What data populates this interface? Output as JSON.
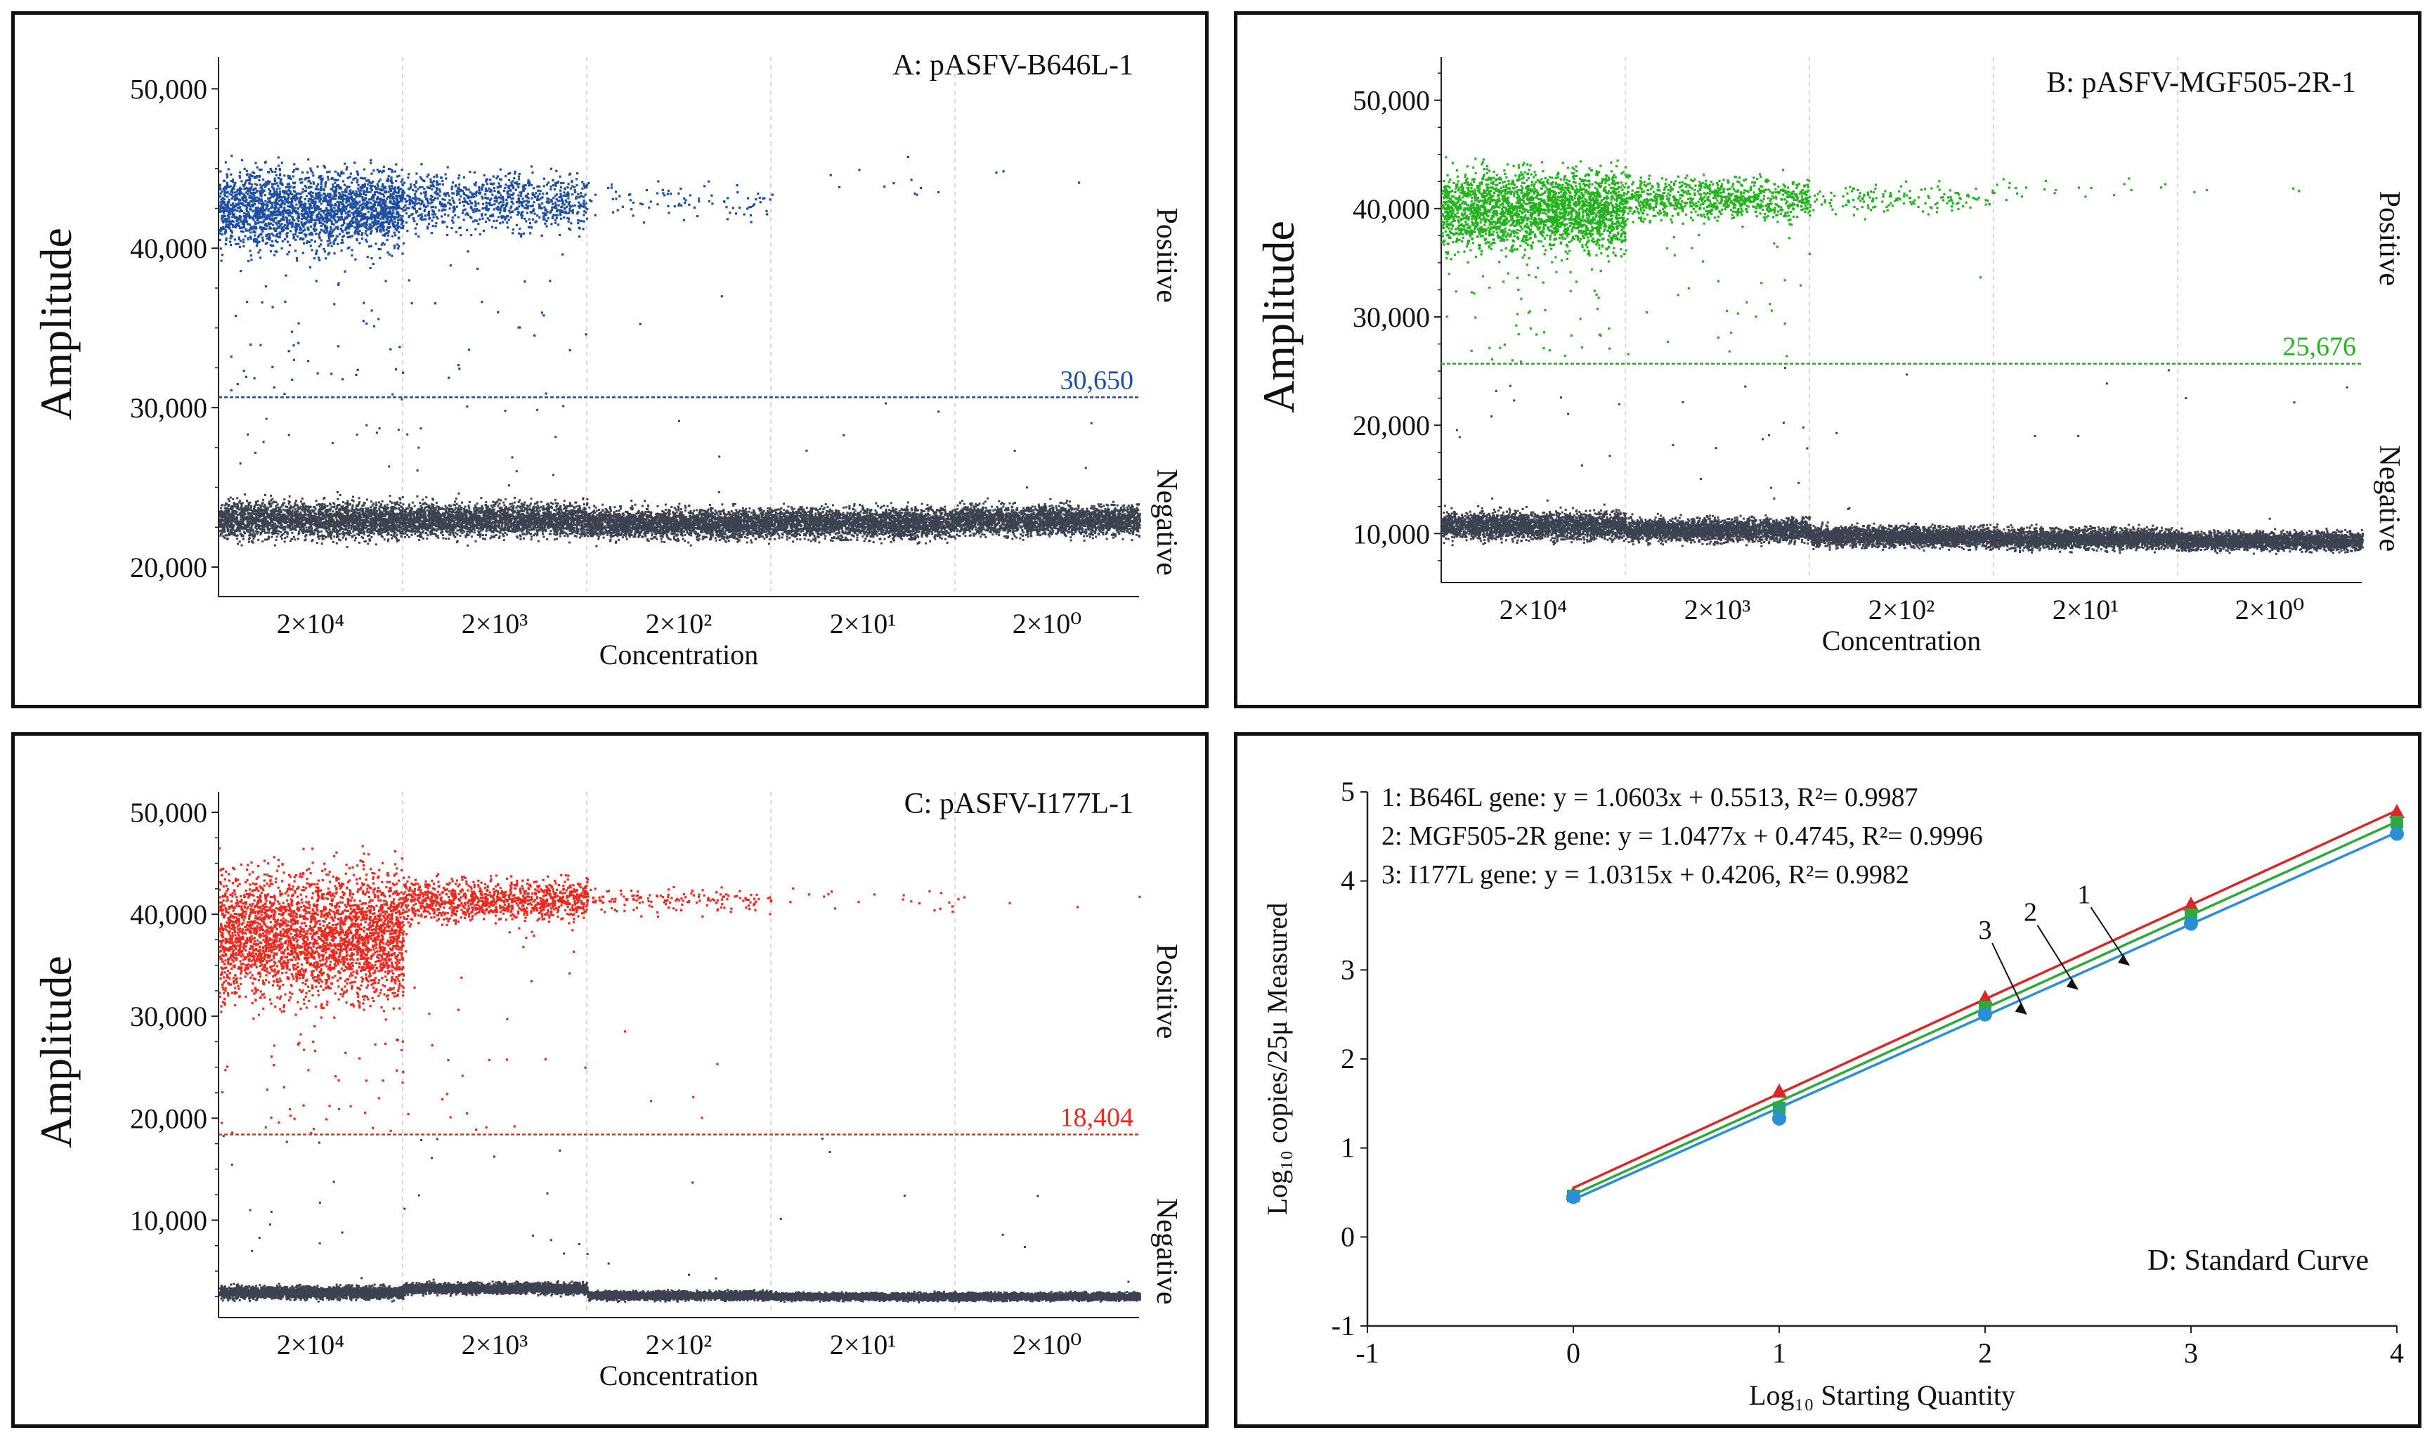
{
  "chart_data": [
    {
      "type": "scatter",
      "panel": "A",
      "title": "A: pASFV-B646L-1",
      "xlabel": "Concentration",
      "ylabel": "Amplitude",
      "categories": [
        "2×10⁴",
        "2×10³",
        "2×10²",
        "2×10¹",
        "2×10⁰"
      ],
      "ylim": [
        18500,
        52000
      ],
      "yticks": [
        20000,
        30000,
        40000,
        50000
      ],
      "ytick_labels": [
        "20,000",
        "30,000",
        "40,000",
        "50,000"
      ],
      "threshold": 30650,
      "threshold_label": "30,650",
      "positive_label": "Positive",
      "negative_label": "Negative",
      "positive_color": "#1f4fa3",
      "negative_color": "#3c4250",
      "positive_clusters": [
        {
          "center": 42500,
          "spread": 2400,
          "count": 2400
        },
        {
          "center": 43000,
          "spread": 1800,
          "count": 900
        },
        {
          "center": 43000,
          "spread": 1300,
          "count": 90
        },
        {
          "center": 44500,
          "spread": 1200,
          "count": 12
        },
        {
          "center": 44700,
          "spread": 600,
          "count": 3
        }
      ],
      "negative_clusters": [
        {
          "center": 23000,
          "spread": 1100
        },
        {
          "center": 23000,
          "spread": 1000
        },
        {
          "center": 22800,
          "spread": 900
        },
        {
          "center": 22800,
          "spread": 900
        },
        {
          "center": 23000,
          "spread": 900
        }
      ]
    },
    {
      "type": "scatter",
      "panel": "B",
      "title": "B: pASFV-MGF505-2R-1",
      "xlabel": "Concentration",
      "ylabel": "Amplitude",
      "categories": [
        "2×10⁴",
        "2×10³",
        "2×10²",
        "2×10¹",
        "2×10⁰"
      ],
      "ylim": [
        6000,
        54000
      ],
      "yticks": [
        10000,
        20000,
        30000,
        40000,
        50000
      ],
      "ytick_labels": [
        "10,000",
        "20,000",
        "30,000",
        "40,000",
        "50,000"
      ],
      "threshold": 25676,
      "threshold_label": "25,676",
      "positive_label": "Positive",
      "negative_label": "Negative",
      "positive_color": "#22b31d",
      "negative_color": "#3c4250",
      "positive_clusters": [
        {
          "center": 40000,
          "spread": 3500,
          "count": 2600
        },
        {
          "center": 41000,
          "spread": 1800,
          "count": 900
        },
        {
          "center": 41000,
          "spread": 1200,
          "count": 160
        },
        {
          "center": 42000,
          "spread": 900,
          "count": 22
        },
        {
          "center": 41500,
          "spread": 600,
          "count": 4
        }
      ],
      "negative_clusters": [
        {
          "center": 10800,
          "spread": 1200
        },
        {
          "center": 10400,
          "spread": 1000
        },
        {
          "center": 9800,
          "spread": 900
        },
        {
          "center": 9600,
          "spread": 900
        },
        {
          "center": 9400,
          "spread": 800
        }
      ]
    },
    {
      "type": "scatter",
      "panel": "C",
      "title": "C: pASFV-I177L-1",
      "xlabel": "Concentration",
      "ylabel": "Amplitude",
      "categories": [
        "2×10⁴",
        "2×10³",
        "2×10²",
        "2×10¹",
        "2×10⁰"
      ],
      "ylim": [
        1000,
        52000
      ],
      "yticks": [
        10000,
        20000,
        30000,
        40000,
        50000
      ],
      "ytick_labels": [
        "10,000",
        "20,000",
        "30,000",
        "40,000",
        "50,000"
      ],
      "threshold": 18404,
      "threshold_label": "18,404",
      "positive_label": "Positive",
      "negative_label": "Negative",
      "positive_color": "#f0281e",
      "negative_color": "#3c4250",
      "positive_clusters": [
        {
          "center": 38000,
          "spread": 6000,
          "count": 3200
        },
        {
          "center": 41500,
          "spread": 2000,
          "count": 1100
        },
        {
          "center": 41500,
          "spread": 1200,
          "count": 160
        },
        {
          "center": 41500,
          "spread": 1200,
          "count": 20
        },
        {
          "center": 41500,
          "spread": 800,
          "count": 5
        }
      ],
      "negative_clusters": [
        {
          "center": 3000,
          "spread": 600
        },
        {
          "center": 3400,
          "spread": 500
        },
        {
          "center": 2700,
          "spread": 400
        },
        {
          "center": 2600,
          "spread": 350
        },
        {
          "center": 2600,
          "spread": 350
        }
      ]
    },
    {
      "type": "line",
      "panel": "D",
      "title": "D: Standard Curve",
      "xlabel": "Log₁₀ Starting Quantity",
      "ylabel": "Log₁₀ copies/25μ Measured",
      "xlim": [
        -1,
        4
      ],
      "ylim": [
        -1,
        5
      ],
      "xticks": [
        -1,
        0,
        1,
        2,
        3,
        4
      ],
      "yticks": [
        -1,
        0,
        1,
        2,
        3,
        4,
        5
      ],
      "equations": [
        "1: B646L gene: y = 1.0603x + 0.5513, R²= 0.9987",
        "2: MGF505-2R gene: y = 1.0477x + 0.4745, R²= 0.9996",
        "3: I177L gene: y = 1.0315x + 0.4206, R²= 0.9982"
      ],
      "line_labels": [
        "3",
        "2",
        "1"
      ],
      "series": [
        {
          "name": "1: B646L gene",
          "slope": 1.0603,
          "intercept": 0.5513,
          "color": "#d62a2a",
          "marker": "triangle",
          "x": [
            0,
            1,
            2,
            3,
            4
          ],
          "y": [
            0.48,
            1.63,
            2.68,
            3.73,
            4.77
          ]
        },
        {
          "name": "2: MGF505-2R gene",
          "slope": 1.0477,
          "intercept": 0.4745,
          "color": "#2eaa3c",
          "marker": "square",
          "x": [
            0,
            1,
            2,
            3,
            4
          ],
          "y": [
            0.46,
            1.45,
            2.58,
            3.62,
            4.66
          ]
        },
        {
          "name": "3: I177L gene",
          "slope": 1.0315,
          "intercept": 0.4206,
          "color": "#2a8fd6",
          "marker": "circle",
          "x": [
            0,
            1,
            2,
            3,
            4
          ],
          "y": [
            0.45,
            1.33,
            2.5,
            3.52,
            4.53
          ]
        }
      ]
    }
  ]
}
